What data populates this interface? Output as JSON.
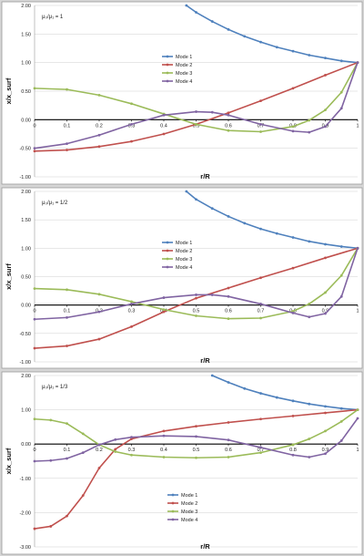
{
  "chart_data": [
    {
      "type": "line",
      "annotation": "μ₀/μ₁ = 1",
      "xlabel": "r/R",
      "ylabel": "x/x_surf",
      "xlim": [
        0,
        1
      ],
      "ylim": [
        -1.0,
        2.0
      ],
      "yticks": [
        "2.00",
        "1.50",
        "1.00",
        "0.50",
        "0.00",
        "-0.50",
        "-1.00"
      ],
      "xticks": [
        "0",
        "0.1",
        "0.2",
        "0.3",
        "0.4",
        "0.5",
        "0.6",
        "0.7",
        "0.8",
        "0.9",
        "1"
      ],
      "legend_position": "center",
      "series": [
        {
          "name": "Mode 1",
          "color": "#4f81bd",
          "x": [
            0.47,
            0.5,
            0.55,
            0.6,
            0.65,
            0.7,
            0.75,
            0.8,
            0.85,
            0.9,
            0.95,
            1.0
          ],
          "y": [
            2.0,
            1.88,
            1.72,
            1.58,
            1.46,
            1.36,
            1.27,
            1.2,
            1.13,
            1.08,
            1.03,
            1.0
          ]
        },
        {
          "name": "Mode 2",
          "color": "#c0504d",
          "x": [
            0.0,
            0.1,
            0.2,
            0.3,
            0.4,
            0.5,
            0.6,
            0.7,
            0.8,
            0.9,
            1.0
          ],
          "y": [
            -0.55,
            -0.53,
            -0.47,
            -0.38,
            -0.25,
            -0.08,
            0.12,
            0.33,
            0.55,
            0.78,
            1.0
          ]
        },
        {
          "name": "Mode 3",
          "color": "#9bbb59",
          "x": [
            0.0,
            0.1,
            0.2,
            0.3,
            0.4,
            0.5,
            0.6,
            0.7,
            0.8,
            0.85,
            0.9,
            0.95,
            1.0
          ],
          "y": [
            0.55,
            0.53,
            0.43,
            0.28,
            0.1,
            -0.08,
            -0.19,
            -0.21,
            -0.12,
            -0.01,
            0.17,
            0.48,
            1.0
          ]
        },
        {
          "name": "Mode 4",
          "color": "#8064a2",
          "x": [
            0.0,
            0.1,
            0.2,
            0.3,
            0.4,
            0.5,
            0.55,
            0.6,
            0.7,
            0.8,
            0.85,
            0.9,
            0.95,
            1.0
          ],
          "y": [
            -0.5,
            -0.42,
            -0.27,
            -0.08,
            0.08,
            0.14,
            0.13,
            0.08,
            -0.08,
            -0.2,
            -0.22,
            -0.12,
            0.2,
            1.0
          ]
        }
      ]
    },
    {
      "type": "line",
      "annotation": "μ₀/μ₁ = 1/2",
      "xlabel": "r/R",
      "ylabel": "x/x_surf",
      "xlim": [
        0,
        1
      ],
      "ylim": [
        -1.0,
        2.0
      ],
      "yticks": [
        "2.00",
        "1.50",
        "1.00",
        "0.50",
        "0.00",
        "-0.50",
        "-1.00"
      ],
      "xticks": [
        "0",
        "0.1",
        "0.2",
        "0.3",
        "0.4",
        "0.5",
        "0.6",
        "0.7",
        "0.8",
        "0.9",
        "1"
      ],
      "legend_position": "center",
      "series": [
        {
          "name": "Mode 1",
          "color": "#4f81bd",
          "x": [
            0.47,
            0.5,
            0.55,
            0.6,
            0.65,
            0.7,
            0.75,
            0.8,
            0.85,
            0.9,
            0.95,
            1.0
          ],
          "y": [
            2.0,
            1.86,
            1.7,
            1.56,
            1.44,
            1.34,
            1.26,
            1.19,
            1.12,
            1.07,
            1.03,
            1.0
          ]
        },
        {
          "name": "Mode 2",
          "color": "#c0504d",
          "x": [
            0.0,
            0.1,
            0.2,
            0.3,
            0.4,
            0.5,
            0.6,
            0.7,
            0.8,
            0.9,
            1.0
          ],
          "y": [
            -0.76,
            -0.72,
            -0.6,
            -0.38,
            -0.12,
            0.12,
            0.3,
            0.48,
            0.65,
            0.83,
            1.0
          ]
        },
        {
          "name": "Mode 3",
          "color": "#9bbb59",
          "x": [
            0.0,
            0.1,
            0.2,
            0.3,
            0.4,
            0.5,
            0.6,
            0.7,
            0.8,
            0.85,
            0.9,
            0.95,
            1.0
          ],
          "y": [
            0.29,
            0.27,
            0.19,
            0.06,
            -0.08,
            -0.19,
            -0.24,
            -0.23,
            -0.11,
            0.02,
            0.22,
            0.52,
            1.0
          ]
        },
        {
          "name": "Mode 4",
          "color": "#8064a2",
          "x": [
            0.0,
            0.1,
            0.2,
            0.3,
            0.4,
            0.5,
            0.55,
            0.6,
            0.7,
            0.8,
            0.85,
            0.9,
            0.95,
            1.0
          ],
          "y": [
            -0.25,
            -0.22,
            -0.12,
            0.02,
            0.13,
            0.18,
            0.18,
            0.15,
            0.02,
            -0.14,
            -0.21,
            -0.15,
            0.15,
            1.0
          ]
        }
      ]
    },
    {
      "type": "line",
      "annotation": "μ₀/μ₁ = 1/3",
      "xlabel": "r/R",
      "ylabel": "x/x_surf",
      "xlim": [
        0,
        1
      ],
      "ylim": [
        -3.0,
        2.0
      ],
      "yticks": [
        "2.00",
        "1.00",
        "0.00",
        "-1.00",
        "-2.00",
        "-3.00"
      ],
      "xticks": [
        "0",
        "0.1",
        "0.2",
        "0.3",
        "0.4",
        "0.5",
        "0.6",
        "0.7",
        "0.8",
        "0.9",
        "1"
      ],
      "legend_position": "center",
      "series": [
        {
          "name": "Mode 1",
          "color": "#4f81bd",
          "x": [
            0.55,
            0.6,
            0.65,
            0.7,
            0.75,
            0.8,
            0.85,
            0.9,
            0.95,
            1.0
          ],
          "y": [
            2.0,
            1.8,
            1.62,
            1.48,
            1.36,
            1.26,
            1.17,
            1.1,
            1.04,
            1.0
          ]
        },
        {
          "name": "Mode 2",
          "color": "#c0504d",
          "x": [
            0.0,
            0.05,
            0.1,
            0.15,
            0.2,
            0.25,
            0.3,
            0.4,
            0.5,
            0.6,
            0.7,
            0.8,
            0.9,
            1.0
          ],
          "y": [
            -2.47,
            -2.4,
            -2.1,
            -1.5,
            -0.7,
            -0.15,
            0.15,
            0.38,
            0.52,
            0.63,
            0.73,
            0.82,
            0.91,
            1.0
          ]
        },
        {
          "name": "Mode 3",
          "color": "#9bbb59",
          "x": [
            0.0,
            0.05,
            0.1,
            0.15,
            0.2,
            0.25,
            0.3,
            0.4,
            0.5,
            0.6,
            0.7,
            0.8,
            0.85,
            0.9,
            0.95,
            1.0
          ],
          "y": [
            0.73,
            0.7,
            0.6,
            0.3,
            -0.02,
            -0.22,
            -0.32,
            -0.38,
            -0.4,
            -0.38,
            -0.25,
            -0.02,
            0.15,
            0.38,
            0.66,
            1.0
          ]
        },
        {
          "name": "Mode 4",
          "color": "#8064a2",
          "x": [
            0.0,
            0.05,
            0.1,
            0.15,
            0.2,
            0.25,
            0.3,
            0.4,
            0.5,
            0.6,
            0.7,
            0.8,
            0.85,
            0.9,
            0.95,
            1.0
          ],
          "y": [
            -0.5,
            -0.48,
            -0.42,
            -0.25,
            -0.02,
            0.13,
            0.2,
            0.24,
            0.22,
            0.12,
            -0.1,
            -0.32,
            -0.38,
            -0.28,
            0.1,
            0.75
          ]
        }
      ]
    }
  ]
}
